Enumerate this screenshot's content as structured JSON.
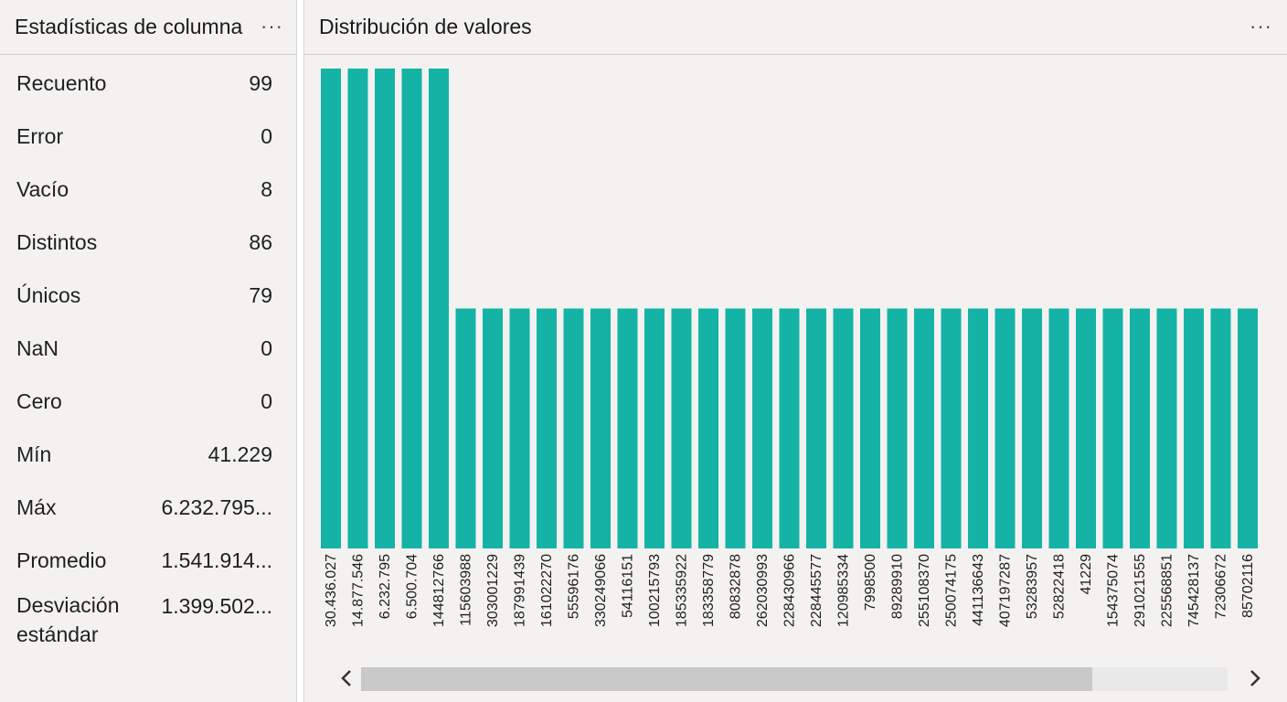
{
  "left_panel": {
    "title": "Estadísticas de columna",
    "more_label": "···",
    "stats": [
      {
        "label": "Recuento",
        "value": "99"
      },
      {
        "label": "Error",
        "value": "0"
      },
      {
        "label": "Vacío",
        "value": "8"
      },
      {
        "label": "Distintos",
        "value": "86"
      },
      {
        "label": "Únicos",
        "value": "79"
      },
      {
        "label": "NaN",
        "value": "0"
      },
      {
        "label": "Cero",
        "value": "0"
      },
      {
        "label": "Mín",
        "value": "41.229"
      },
      {
        "label": "Máx",
        "value": "6.232.795..."
      },
      {
        "label": "Promedio",
        "value": "1.541.914..."
      },
      {
        "label": "Desviación estándar",
        "value": "1.399.502..."
      }
    ]
  },
  "right_panel": {
    "title": "Distribución de valores",
    "more_label": "···"
  },
  "chart_data": {
    "type": "bar",
    "title": "Distribución de valores",
    "categories": [
      "30.436.027",
      "14.877.546",
      "6.232.795",
      "6.500.704",
      "144812766",
      "115603988",
      "303001229",
      "187991439",
      "161022270",
      "55596176",
      "330249066",
      "54116151",
      "100215793",
      "185335922",
      "183358779",
      "80832878",
      "262030993",
      "228430966",
      "228445577",
      "120985334",
      "7998500",
      "89289910",
      "255108370",
      "250074175",
      "441136643",
      "407197287",
      "53283957",
      "52822418",
      "41229",
      "154375074",
      "291021555",
      "225568851",
      "745428137",
      "72306672",
      "85702116"
    ],
    "values": [
      2,
      2,
      2,
      2,
      2,
      1,
      1,
      1,
      1,
      1,
      1,
      1,
      1,
      1,
      1,
      1,
      1,
      1,
      1,
      1,
      1,
      1,
      1,
      1,
      1,
      1,
      1,
      1,
      1,
      1,
      1,
      1,
      1,
      1,
      1
    ],
    "bar_color": "#14b3a6",
    "grid": false
  },
  "scrollbar": {
    "left_icon": "chevron-left-icon",
    "right_icon": "chevron-right-icon"
  }
}
